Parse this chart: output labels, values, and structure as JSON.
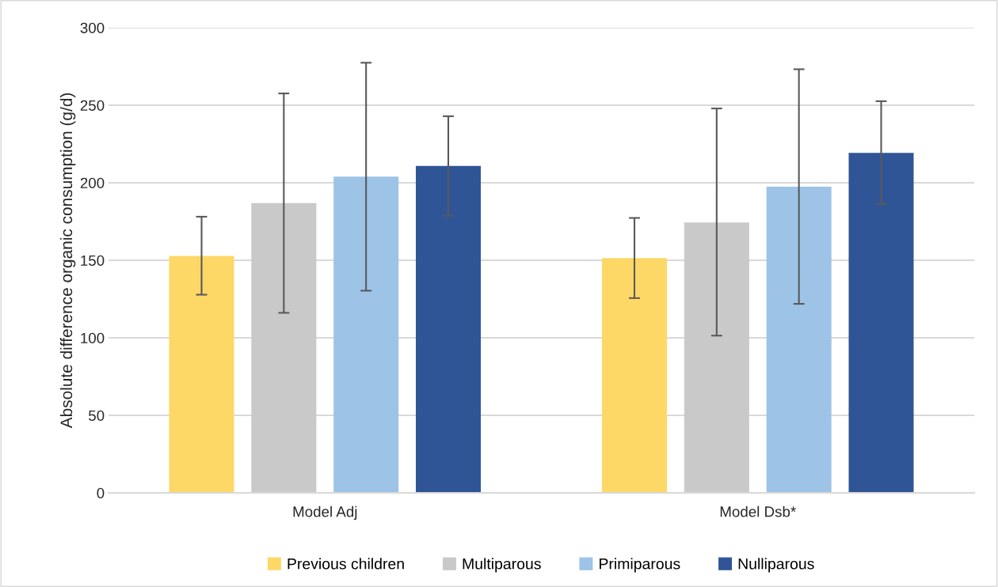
{
  "chart_data": {
    "type": "bar",
    "ylabel": "Absolute difference organic consumption (g/d)",
    "categories": [
      "Model Adj",
      "Model Dsb*"
    ],
    "series": [
      {
        "name": "Previous children",
        "color": "#fdd866",
        "values": [
          152.8,
          151.4
        ],
        "errors": [
          [
            127.8,
            178.1
          ],
          [
            125.6,
            177.3
          ]
        ]
      },
      {
        "name": "Multiparous",
        "color": "#c9c9c9",
        "values": [
          186.8,
          174.4
        ],
        "errors": [
          [
            116.1,
            257.6
          ],
          [
            101.4,
            247.9
          ]
        ]
      },
      {
        "name": "Primiparous",
        "color": "#9dc3e6",
        "values": [
          203.9,
          197.5
        ],
        "errors": [
          [
            130.4,
            277.4
          ],
          [
            121.9,
            273.2
          ]
        ]
      },
      {
        "name": "Nulliparous",
        "color": "#2f5597",
        "values": [
          210.8,
          219.3
        ],
        "errors": [
          [
            178.7,
            242.9
          ],
          [
            186.2,
            252.6
          ]
        ]
      }
    ],
    "ylim": [
      0,
      300
    ],
    "yticks": [
      0,
      50,
      100,
      150,
      200,
      250,
      300
    ],
    "grid": "y",
    "legend": "bottom"
  }
}
